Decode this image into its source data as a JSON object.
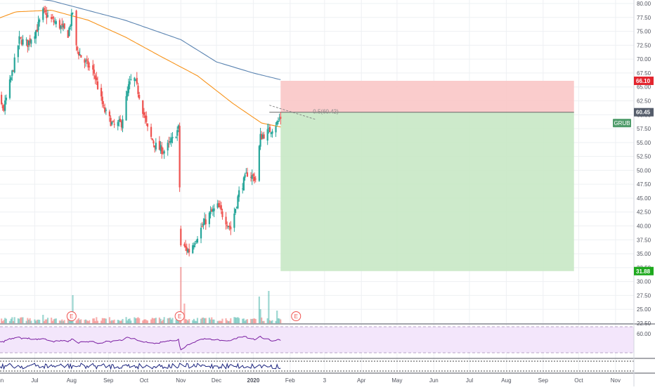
{
  "symbol": "GRUB",
  "colors": {
    "up": "#26a69a",
    "down": "#ef5350",
    "ma_fast": "#f7931a",
    "ma_slow": "#5b84b1",
    "stop_zone": "#f9c7c7",
    "target_zone": "#c8e8c5",
    "rsi_band": "#f3e6fb",
    "rsi_line": "#7b1fa2",
    "osc_line": "#1a237e",
    "badge_stop": "#e3262f",
    "badge_entry": "#555d6b",
    "badge_target": "#1ea91e",
    "badge_symbol": "#4f9c6b"
  },
  "price_axis": {
    "ticks": [
      "80.00",
      "77.50",
      "75.00",
      "72.50",
      "70.00",
      "67.50",
      "65.00",
      "62.50",
      "60.00",
      "57.50",
      "55.00",
      "52.50",
      "50.00",
      "47.50",
      "45.00",
      "42.50",
      "40.00",
      "37.50",
      "35.00",
      "32.50",
      "30.00",
      "27.50",
      "25.00",
      "22.50"
    ],
    "min": 22.5,
    "max": 80.0
  },
  "rsi_axis": {
    "ticks": [
      "60.00"
    ]
  },
  "time_axis": {
    "labels": [
      "Jun",
      "Jul",
      "Aug",
      "Sep",
      "Oct",
      "Nov",
      "Dec",
      "2020",
      "Feb",
      "3",
      "Apr",
      "May",
      "Jun",
      "Jul",
      "Aug",
      "Sep",
      "Oct",
      "Nov"
    ]
  },
  "badges": {
    "stop": "66.10",
    "entry": "60.45",
    "target": "31.88",
    "symbol": "GRUB"
  },
  "fib_label": "0.5(60.42)",
  "earnings_marker": "E",
  "chart_data": {
    "type": "candlestick",
    "title": "",
    "series": [
      {
        "kind": "price",
        "anchors": [
          [
            "2019-05-15",
            61.5
          ],
          [
            "2019-05-25",
            64.5
          ],
          [
            "2019-06-05",
            61.0
          ],
          [
            "2019-06-12",
            67.5
          ],
          [
            "2019-06-18",
            73.5
          ],
          [
            "2019-06-25",
            72.8
          ],
          [
            "2019-07-03",
            75.5
          ],
          [
            "2019-07-08",
            78.5
          ],
          [
            "2019-07-15",
            77.0
          ],
          [
            "2019-07-22",
            76.0
          ],
          [
            "2019-07-29",
            74.5
          ],
          [
            "2019-08-02",
            78.5
          ],
          [
            "2019-08-05",
            72.0
          ],
          [
            "2019-08-10",
            70.0
          ],
          [
            "2019-08-20",
            67.5
          ],
          [
            "2019-08-28",
            61.0
          ],
          [
            "2019-09-05",
            58.0
          ],
          [
            "2019-09-12",
            58.5
          ],
          [
            "2019-09-18",
            65.0
          ],
          [
            "2019-09-22",
            67.0
          ],
          [
            "2019-09-27",
            63.5
          ],
          [
            "2019-10-05",
            56.5
          ],
          [
            "2019-10-12",
            54.0
          ],
          [
            "2019-10-18",
            53.5
          ],
          [
            "2019-10-25",
            55.5
          ],
          [
            "2019-10-30",
            57.5
          ],
          [
            "2019-11-01",
            36.5
          ],
          [
            "2019-11-08",
            35.5
          ],
          [
            "2019-11-18",
            39.5
          ],
          [
            "2019-11-25",
            42.0
          ],
          [
            "2019-12-02",
            43.5
          ],
          [
            "2019-12-09",
            41.0
          ],
          [
            "2019-12-13",
            39.5
          ],
          [
            "2019-12-20",
            46.0
          ],
          [
            "2019-12-27",
            49.5
          ],
          [
            "2020-01-03",
            48.5
          ],
          [
            "2020-01-07",
            56.0
          ],
          [
            "2020-01-14",
            57.0
          ],
          [
            "2020-01-21",
            58.5
          ],
          [
            "2020-01-24",
            59.5
          ]
        ]
      },
      {
        "kind": "ma_fast",
        "anchors": [
          [
            "2019-05-15",
            76.0
          ],
          [
            "2019-06-15",
            78.5
          ],
          [
            "2019-07-15",
            78.8
          ],
          [
            "2019-08-15",
            77.0
          ],
          [
            "2019-09-15",
            74.0
          ],
          [
            "2019-10-15",
            70.5
          ],
          [
            "2019-11-15",
            67.0
          ],
          [
            "2019-12-15",
            62.0
          ],
          [
            "2020-01-08",
            58.5
          ],
          [
            "2020-01-24",
            57.8
          ]
        ]
      },
      {
        "kind": "ma_slow",
        "anchors": [
          [
            "2019-05-15",
            82.0
          ],
          [
            "2019-07-15",
            80.5
          ],
          [
            "2019-09-15",
            77.0
          ],
          [
            "2019-11-01",
            73.5
          ],
          [
            "2019-12-01",
            69.5
          ],
          [
            "2020-01-01",
            67.5
          ],
          [
            "2020-01-24",
            66.3
          ]
        ]
      }
    ],
    "position": {
      "start": "2020-01-24",
      "end": "2020-09-27",
      "stop": 66.1,
      "entry": 60.45,
      "target": 31.88
    },
    "xlim": [
      "2019-05-15",
      "2020-11-20"
    ],
    "ylim": [
      22.5,
      80.0
    ],
    "grid": true,
    "legend": "none"
  }
}
